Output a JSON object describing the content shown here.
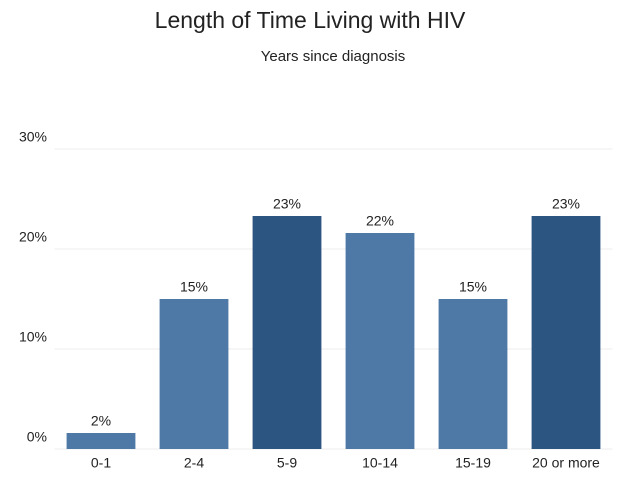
{
  "chart_data": {
    "type": "bar",
    "title": "Length of Time Living with HIV",
    "subtitle": "Years since diagnosis",
    "categories": [
      "0-1",
      "2-4",
      "5-9",
      "10-14",
      "15-19",
      "20 or more"
    ],
    "values": [
      1.6,
      15,
      23.3,
      21.6,
      15,
      23.3
    ],
    "value_labels": [
      "2%",
      "15%",
      "23%",
      "22%",
      "15%",
      "23%"
    ],
    "colors": [
      "#4e79a7",
      "#4e79a7",
      "#2c5582",
      "#4e79a7",
      "#4e79a7",
      "#2c5582"
    ],
    "ylim": [
      0,
      35
    ],
    "yticks": [
      {
        "value": 0,
        "label": "0%"
      },
      {
        "value": 10,
        "label": "10%"
      },
      {
        "value": 20,
        "label": "20%"
      },
      {
        "value": 30,
        "label": "30%"
      }
    ],
    "grid": true
  }
}
